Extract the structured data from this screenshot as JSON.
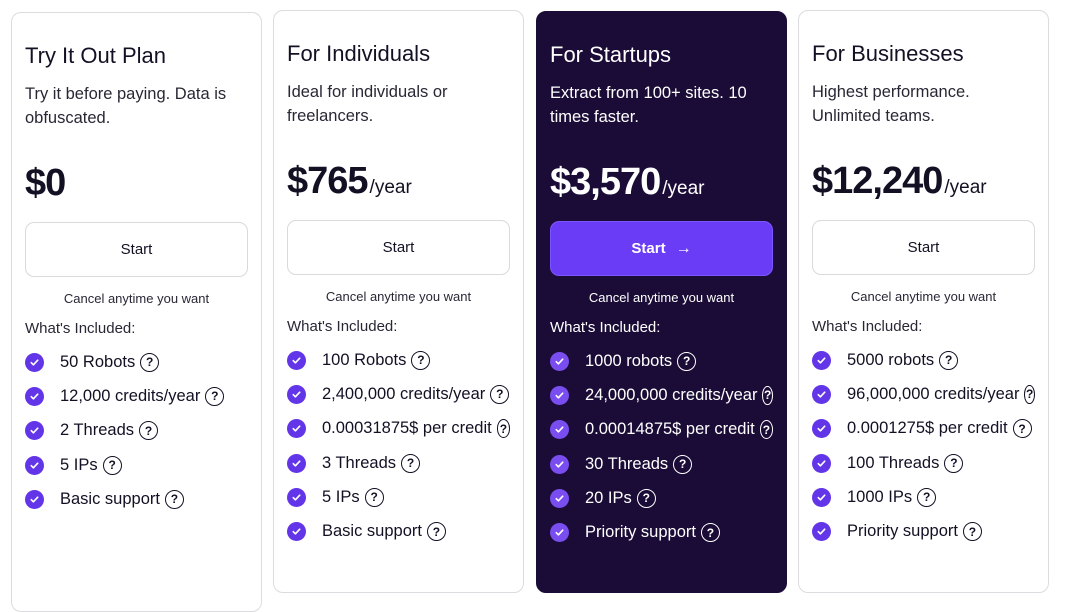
{
  "plans": [
    {
      "title": "Try It Out Plan",
      "description": "Try it before paying. Data is obfuscated.",
      "price": "$0",
      "period": "",
      "button": "Start",
      "cancel": "Cancel anytime you want",
      "included_label": "What's Included:",
      "features": [
        "50 Robots",
        "12,000 credits/year",
        "2 Threads",
        "5 IPs",
        "Basic support"
      ]
    },
    {
      "title": "For Individuals",
      "description": "Ideal for individuals or freelancers.",
      "price": "$765",
      "period": "/year",
      "button": "Start",
      "cancel": "Cancel anytime you want",
      "included_label": "What's Included:",
      "features": [
        "100 Robots",
        "2,400,000 credits/year",
        "0.00031875$ per credit",
        "3 Threads",
        "5 IPs",
        "Basic support"
      ]
    },
    {
      "title": "For Startups",
      "description": "Extract from 100+ sites. 10 times faster.",
      "price": "$3,570",
      "period": "/year",
      "button": "Start",
      "cancel": "Cancel anytime you want",
      "included_label": "What's Included:",
      "features": [
        "1000 robots",
        "24,000,000 credits/year",
        "0.00014875$ per credit",
        "30 Threads",
        "20 IPs",
        "Priority support"
      ],
      "highlighted": true
    },
    {
      "title": "For Businesses",
      "description": "Highest performance. Unlimited teams.",
      "price": "$12,240",
      "period": "/year",
      "button": "Start",
      "cancel": "Cancel anytime you want",
      "included_label": "What's Included:",
      "features": [
        "5000 robots",
        "96,000,000 credits/year",
        "0.0001275$ per credit",
        "100 Threads",
        "1000 IPs",
        "Priority support"
      ]
    }
  ],
  "colors": {
    "accent": "#6b3cf5",
    "dark_card": "#1a0c36",
    "check": "#6236e8"
  }
}
